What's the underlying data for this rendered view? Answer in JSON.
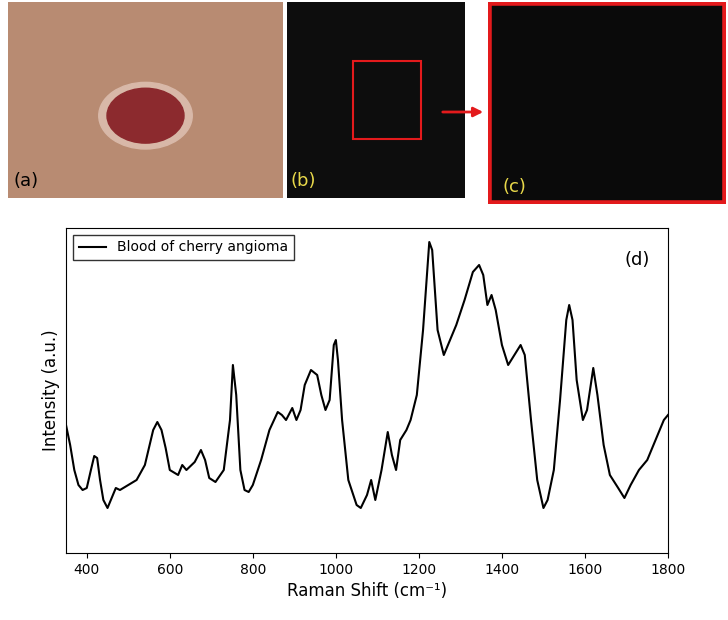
{
  "panels": [
    {
      "label": "(a)"
    },
    {
      "label": "(b)"
    },
    {
      "label": "(c)"
    }
  ],
  "chart_data": {
    "type": "line",
    "annotation": "(d)",
    "xlabel": "Raman Shift (cm⁻¹)",
    "ylabel": "Intensity (a.u.)",
    "xlim": [
      350,
      1800
    ],
    "xticks": [
      400,
      600,
      800,
      1000,
      1200,
      1400,
      1600,
      1800
    ],
    "ylim": [
      0,
      325
    ],
    "tick_labels": "x",
    "legend": "upper left",
    "series": [
      {
        "name": "Blood of cherry angioma",
        "color": "#000000",
        "line_style": "solid",
        "x": [
          350,
          360,
          370,
          380,
          390,
          400,
          410,
          418,
          425,
          432,
          440,
          450,
          460,
          470,
          480,
          500,
          520,
          540,
          560,
          570,
          580,
          590,
          600,
          620,
          630,
          640,
          660,
          675,
          685,
          695,
          710,
          730,
          745,
          752,
          760,
          770,
          780,
          790,
          800,
          820,
          840,
          860,
          870,
          880,
          895,
          905,
          915,
          925,
          940,
          955,
          965,
          975,
          985,
          995,
          1000,
          1005,
          1015,
          1030,
          1050,
          1060,
          1075,
          1085,
          1095,
          1110,
          1125,
          1135,
          1145,
          1155,
          1170,
          1180,
          1195,
          1210,
          1225,
          1232,
          1245,
          1260,
          1275,
          1290,
          1310,
          1330,
          1345,
          1355,
          1365,
          1375,
          1385,
          1400,
          1415,
          1430,
          1445,
          1455,
          1470,
          1485,
          1500,
          1510,
          1525,
          1540,
          1555,
          1562,
          1570,
          1580,
          1595,
          1605,
          1620,
          1630,
          1645,
          1660,
          1680,
          1695,
          1710,
          1730,
          1750,
          1770,
          1790,
          1800
        ],
        "values": [
          128,
          108,
          83,
          68,
          63,
          65,
          83,
          97,
          95,
          73,
          53,
          45,
          55,
          65,
          63,
          68,
          73,
          88,
          123,
          131,
          123,
          105,
          83,
          78,
          88,
          83,
          91,
          103,
          93,
          75,
          71,
          83,
          133,
          188,
          158,
          83,
          63,
          61,
          68,
          93,
          123,
          141,
          138,
          133,
          145,
          133,
          143,
          168,
          183,
          178,
          158,
          143,
          153,
          208,
          213,
          193,
          133,
          73,
          48,
          45,
          58,
          73,
          53,
          83,
          121,
          98,
          83,
          113,
          123,
          133,
          158,
          223,
          311,
          303,
          223,
          198,
          213,
          228,
          253,
          281,
          288,
          278,
          248,
          258,
          243,
          208,
          188,
          198,
          208,
          198,
          133,
          73,
          45,
          53,
          83,
          153,
          233,
          248,
          233,
          173,
          133,
          143,
          185,
          158,
          108,
          78,
          65,
          55,
          68,
          83,
          93,
          113,
          133,
          138
        ]
      }
    ]
  }
}
